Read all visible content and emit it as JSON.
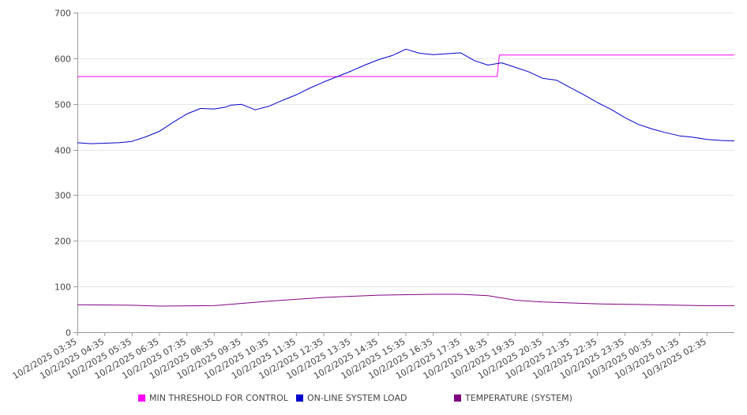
{
  "chart_data": {
    "type": "line",
    "title": "",
    "xlabel": "",
    "ylabel": "",
    "ylim": [
      0,
      700
    ],
    "yticks": [
      0,
      100,
      200,
      300,
      400,
      500,
      600,
      700
    ],
    "grid": "horizontal",
    "legend_position": "bottom",
    "x_start": "10/2/2025 03:35",
    "x_end": "10/3/2025 03:35",
    "x_tick_labels": [
      "10/2/2025 03:35",
      "10/2/2025 04:35",
      "10/2/2025 05:35",
      "10/2/2025 06:35",
      "10/2/2025 07:35",
      "10/2/2025 08:35",
      "10/2/2025 09:35",
      "10/2/2025 10:35",
      "10/2/2025 11:35",
      "10/2/2025 12:35",
      "10/2/2025 13:35",
      "10/2/2025 14:35",
      "10/2/2025 15:35",
      "10/2/2025 16:35",
      "10/2/2025 17:35",
      "10/2/2025 18:35",
      "10/2/2025 19:35",
      "10/2/2025 20:35",
      "10/2/2025 21:35",
      "10/2/2025 22:35",
      "10/2/2025 23:35",
      "10/3/2025 00:35",
      "10/3/2025 01:35",
      "10/3/2025 02:35"
    ],
    "series": [
      {
        "name": "MIN THRESHOLD FOR CONTROL",
        "color": "#ff00ff",
        "x": [
          "10/2/2025 03:35",
          "10/2/2025 18:55",
          "10/2/2025 19:00",
          "10/3/2025 03:35"
        ],
        "values": [
          560,
          560,
          607,
          607
        ]
      },
      {
        "name": "ON-LINE SYSTEM LOAD",
        "color": "#0000cc",
        "x": [
          "10/2/2025 03:35",
          "10/2/2025 04:05",
          "10/2/2025 04:35",
          "10/2/2025 05:05",
          "10/2/2025 05:35",
          "10/2/2025 06:05",
          "10/2/2025 06:35",
          "10/2/2025 07:05",
          "10/2/2025 07:35",
          "10/2/2025 08:05",
          "10/2/2025 08:35",
          "10/2/2025 09:00",
          "10/2/2025 09:10",
          "10/2/2025 09:35",
          "10/2/2025 10:05",
          "10/2/2025 10:35",
          "10/2/2025 11:05",
          "10/2/2025 11:35",
          "10/2/2025 12:05",
          "10/2/2025 12:35",
          "10/2/2025 13:05",
          "10/2/2025 13:35",
          "10/2/2025 14:05",
          "10/2/2025 14:35",
          "10/2/2025 15:05",
          "10/2/2025 15:35",
          "10/2/2025 16:05",
          "10/2/2025 16:35",
          "10/2/2025 17:05",
          "10/2/2025 17:35",
          "10/2/2025 18:05",
          "10/2/2025 18:35",
          "10/2/2025 19:05",
          "10/2/2025 19:35",
          "10/2/2025 20:05",
          "10/2/2025 20:35",
          "10/2/2025 21:05",
          "10/2/2025 21:35",
          "10/2/2025 22:05",
          "10/2/2025 22:35",
          "10/2/2025 23:05",
          "10/2/2025 23:35",
          "10/3/2025 00:05",
          "10/3/2025 00:35",
          "10/3/2025 01:05",
          "10/3/2025 01:35",
          "10/3/2025 02:05",
          "10/3/2025 02:35",
          "10/3/2025 03:05",
          "10/3/2025 03:35"
        ],
        "values": [
          415,
          413,
          414,
          415,
          418,
          428,
          440,
          460,
          478,
          490,
          489,
          493,
          497,
          499,
          487,
          495,
          508,
          520,
          535,
          548,
          560,
          572,
          585,
          597,
          606,
          620,
          611,
          608,
          610,
          612,
          595,
          585,
          590,
          580,
          570,
          556,
          552,
          536,
          520,
          503,
          488,
          470,
          455,
          445,
          437,
          430,
          427,
          422,
          420,
          419
        ]
      },
      {
        "name": "TEMPERATURE (SYSTEM)",
        "color": "#800080",
        "x": [
          "10/2/2025 03:35",
          "10/2/2025 05:35",
          "10/2/2025 06:35",
          "10/2/2025 08:35",
          "10/2/2025 10:35",
          "10/2/2025 12:35",
          "10/2/2025 14:35",
          "10/2/2025 16:35",
          "10/2/2025 17:35",
          "10/2/2025 18:35",
          "10/2/2025 19:35",
          "10/2/2025 20:35",
          "10/2/2025 22:35",
          "10/3/2025 00:35",
          "10/3/2025 02:35",
          "10/3/2025 03:35"
        ],
        "values": [
          60,
          59,
          57,
          58,
          68,
          76,
          81,
          83,
          83,
          80,
          70,
          66,
          62,
          60,
          58,
          58
        ]
      }
    ]
  }
}
